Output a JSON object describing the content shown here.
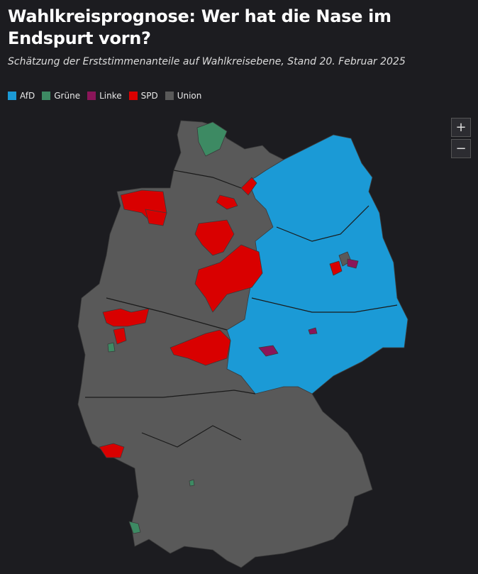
{
  "header": {
    "title": "Wahlkreisprognose: Wer hat die Nase im Endspurt vorn?",
    "subtitle": "Schätzung der Erststimmenanteile auf Wahlkreisebene, Stand 20. Februar 2025"
  },
  "legend": {
    "items": [
      {
        "name": "AfD",
        "color": "#1b9ad6"
      },
      {
        "name": "Grüne",
        "color": "#3d8a63"
      },
      {
        "name": "Linke",
        "color": "#8a1559"
      },
      {
        "name": "SPD",
        "color": "#d90000"
      },
      {
        "name": "Union",
        "color": "#595959"
      }
    ]
  },
  "controls": {
    "zoom_in": "+",
    "zoom_out": "−"
  }
}
